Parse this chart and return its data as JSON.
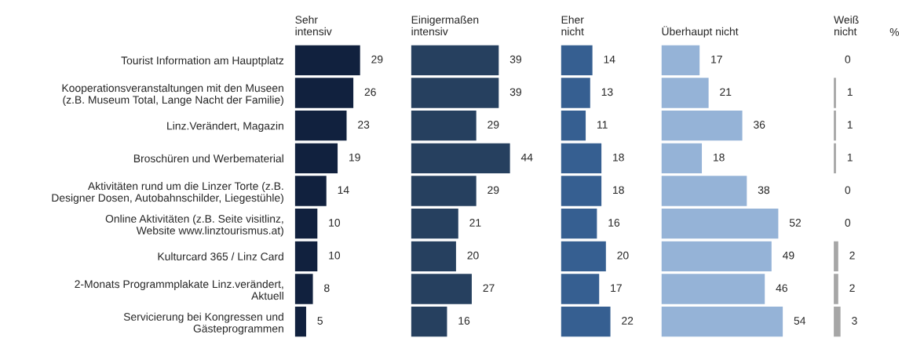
{
  "chart_data": [
    {
      "type": "bar",
      "orientation": "horizontal",
      "title": "Sehr\nintensiv",
      "tick_labels": "y",
      "data_labels": true,
      "color": "#11213e",
      "categories": [
        "Tourist Information am Hauptplatz",
        "Kooperationsveranstaltungen mit den Museen\n(z.B. Museum Total, Lange Nacht der Familie)",
        "Linz.Verändert, Magazin",
        "Broschüren und Werbematerial",
        "Aktivitäten rund um die Linzer Torte (z.B.\nDesigner Dosen, Autobahnschilder, Liegestühle)",
        "Online Aktivitäten (z.B. Seite visitlinz,\nWebsite www.linztourismus.at)",
        "Kulturcard 365 / Linz Card",
        "2-Monats Programmplakate Linz.verändert,\nAktuell",
        "Servicierung bei Kongressen und\nGästeprogrammen"
      ],
      "values": [
        29,
        26,
        23,
        19,
        14,
        10,
        10,
        8,
        5
      ]
    },
    {
      "type": "bar",
      "orientation": "horizontal",
      "title": "Einigermaßen\nintensiv",
      "tick_labels": false,
      "data_labels": true,
      "color": "#26405f",
      "categories": [
        null,
        null,
        null,
        null,
        null,
        null,
        null,
        null,
        null
      ],
      "values": [
        39,
        39,
        29,
        44,
        29,
        21,
        20,
        27,
        16
      ]
    },
    {
      "type": "bar",
      "orientation": "horizontal",
      "title": "Eher\nnicht",
      "tick_labels": false,
      "data_labels": true,
      "color": "#365f91",
      "categories": [
        null,
        null,
        null,
        null,
        null,
        null,
        null,
        null,
        null
      ],
      "values": [
        14,
        13,
        11,
        18,
        18,
        16,
        20,
        17,
        22
      ]
    },
    {
      "type": "bar",
      "orientation": "horizontal",
      "title": "Überhaupt nicht",
      "tick_labels": false,
      "data_labels": true,
      "color": "#95b3d7",
      "categories": [
        null,
        null,
        null,
        null,
        null,
        null,
        null,
        null,
        null
      ],
      "values": [
        17,
        21,
        36,
        18,
        38,
        52,
        49,
        46,
        54
      ]
    },
    {
      "type": "bar",
      "orientation": "horizontal",
      "title": "Weiß\nnicht",
      "tick_labels": false,
      "data_labels": true,
      "color": "#a6a6a6",
      "categories": [
        null,
        null,
        null,
        null,
        null,
        null,
        null,
        null,
        null
      ],
      "values": [
        0,
        1,
        1,
        1,
        0,
        0,
        2,
        2,
        3
      ],
      "annotations": [
        "%"
      ]
    }
  ]
}
